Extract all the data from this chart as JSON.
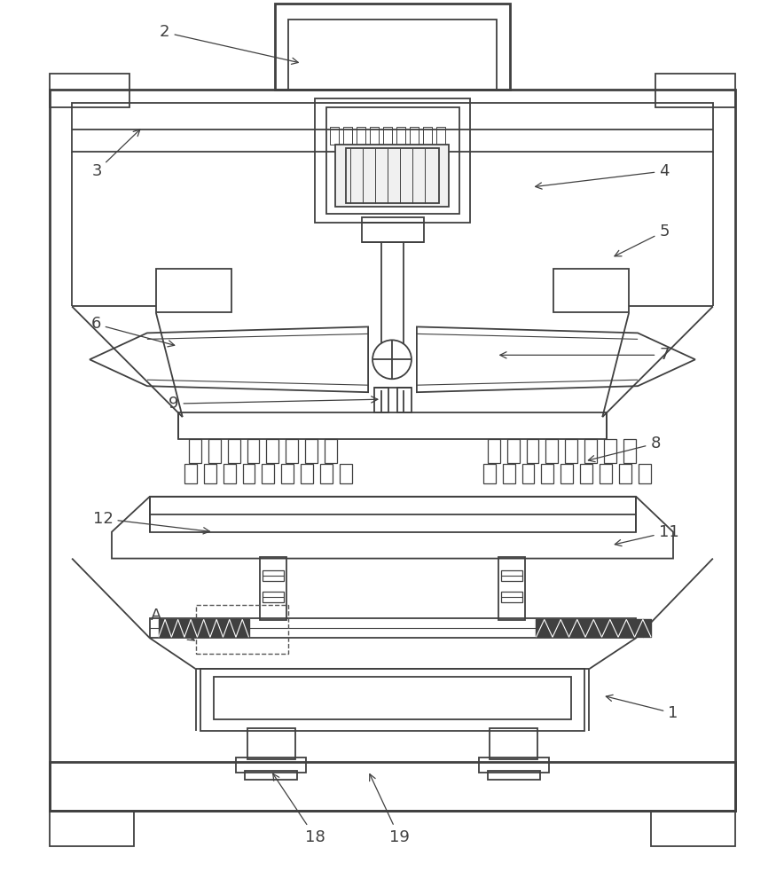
{
  "bg_color": "#ffffff",
  "lc": "#404040",
  "lw": 1.3,
  "tlw": 2.0,
  "fig_w": 8.84,
  "fig_h": 10.0
}
